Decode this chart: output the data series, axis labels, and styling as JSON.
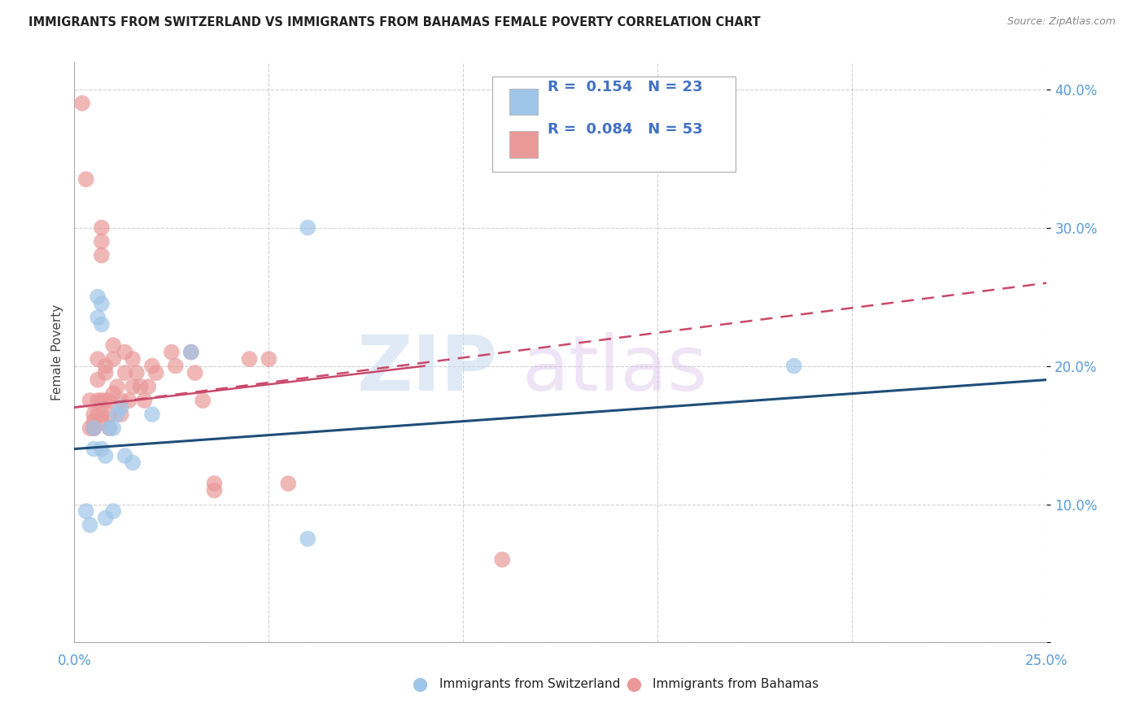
{
  "title": "IMMIGRANTS FROM SWITZERLAND VS IMMIGRANTS FROM BAHAMAS FEMALE POVERTY CORRELATION CHART",
  "source": "Source: ZipAtlas.com",
  "ylabel": "Female Poverty",
  "xlim": [
    0.0,
    0.25
  ],
  "ylim": [
    0.0,
    0.42
  ],
  "blue_color": "#9fc5e8",
  "pink_color": "#ea9999",
  "blue_line_color": "#1f4e79",
  "pink_line_color": "#c9496a",
  "legend_label1": "Immigrants from Switzerland",
  "legend_label2": "Immigrants from Bahamas",
  "switzerland_x": [
    0.003,
    0.004,
    0.005,
    0.005,
    0.006,
    0.006,
    0.007,
    0.007,
    0.007,
    0.008,
    0.008,
    0.009,
    0.01,
    0.01,
    0.011,
    0.012,
    0.013,
    0.015,
    0.02,
    0.03,
    0.06,
    0.185,
    0.06
  ],
  "switzerland_y": [
    0.095,
    0.085,
    0.155,
    0.14,
    0.25,
    0.235,
    0.245,
    0.23,
    0.14,
    0.09,
    0.135,
    0.155,
    0.155,
    0.095,
    0.165,
    0.17,
    0.135,
    0.13,
    0.165,
    0.21,
    0.075,
    0.2,
    0.3
  ],
  "bahamas_x": [
    0.002,
    0.003,
    0.004,
    0.004,
    0.005,
    0.005,
    0.005,
    0.005,
    0.005,
    0.006,
    0.006,
    0.006,
    0.006,
    0.007,
    0.007,
    0.007,
    0.007,
    0.007,
    0.007,
    0.008,
    0.008,
    0.008,
    0.009,
    0.009,
    0.009,
    0.01,
    0.01,
    0.01,
    0.011,
    0.012,
    0.012,
    0.013,
    0.013,
    0.014,
    0.015,
    0.015,
    0.016,
    0.017,
    0.018,
    0.019,
    0.02,
    0.021,
    0.025,
    0.026,
    0.03,
    0.031,
    0.033,
    0.036,
    0.036,
    0.045,
    0.05,
    0.055,
    0.11
  ],
  "bahamas_y": [
    0.39,
    0.335,
    0.155,
    0.175,
    0.165,
    0.16,
    0.155,
    0.155,
    0.155,
    0.205,
    0.19,
    0.175,
    0.165,
    0.3,
    0.29,
    0.28,
    0.175,
    0.165,
    0.16,
    0.2,
    0.195,
    0.175,
    0.175,
    0.165,
    0.155,
    0.215,
    0.205,
    0.18,
    0.185,
    0.175,
    0.165,
    0.21,
    0.195,
    0.175,
    0.205,
    0.185,
    0.195,
    0.185,
    0.175,
    0.185,
    0.2,
    0.195,
    0.21,
    0.2,
    0.21,
    0.195,
    0.175,
    0.115,
    0.11,
    0.205,
    0.205,
    0.115,
    0.06
  ]
}
